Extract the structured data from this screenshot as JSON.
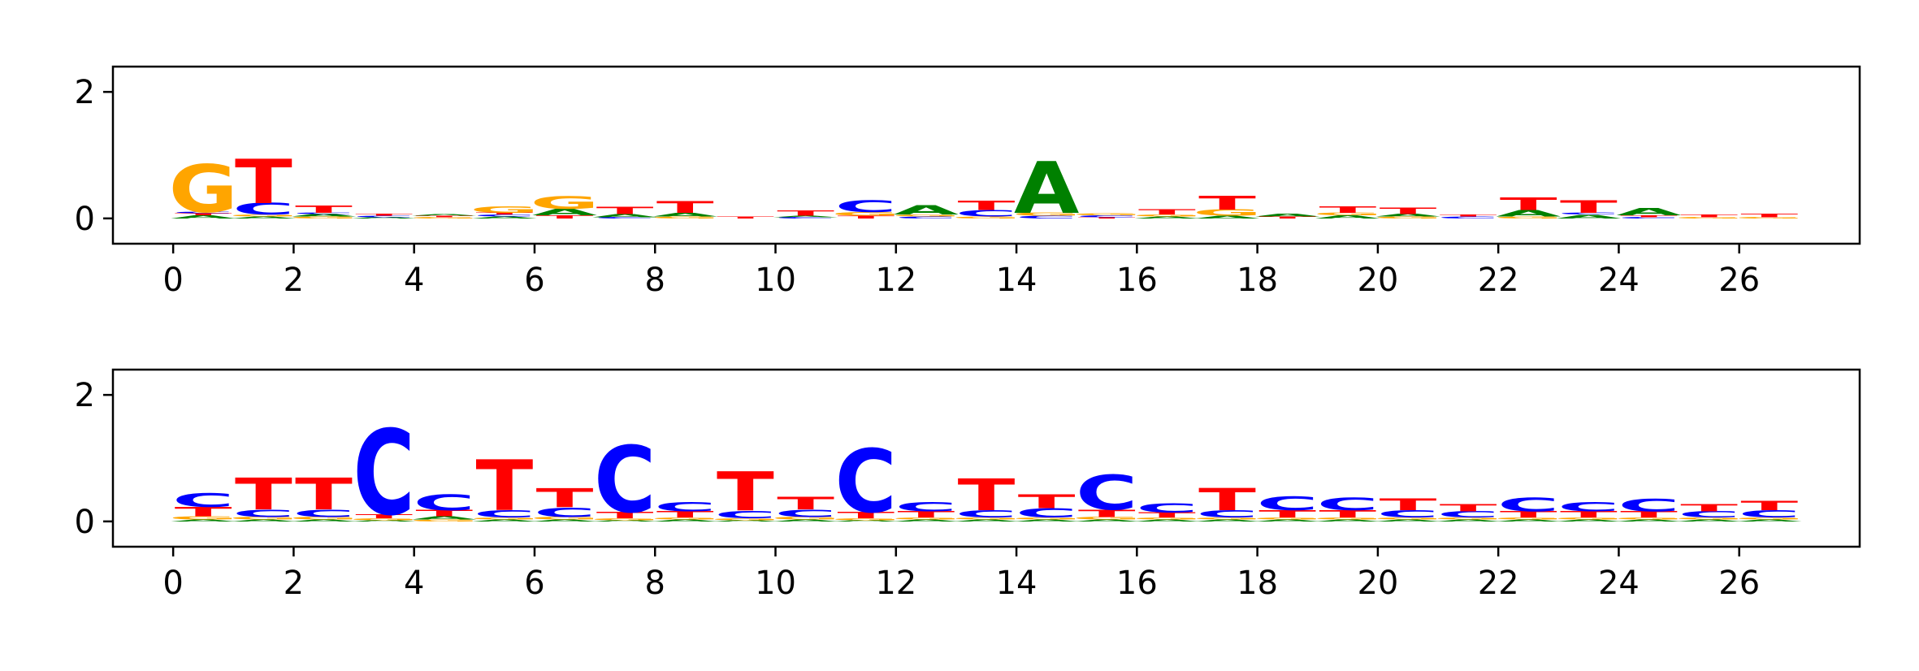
{
  "colors": {
    "A": "#008000",
    "C": "#0000ff",
    "G": "#ffa500",
    "T": "#ff0000"
  },
  "chart_data": [
    {
      "type": "sequence-logo",
      "title": "",
      "xlabel": "",
      "ylabel": "",
      "xlim": [
        -1,
        28
      ],
      "ylim": [
        -0.4,
        2.4
      ],
      "x_ticks": [
        "0",
        "2",
        "4",
        "6",
        "8",
        "10",
        "12",
        "14",
        "16",
        "18",
        "20",
        "22",
        "24",
        "26"
      ],
      "y_ticks": [
        "0",
        "2"
      ],
      "positions": [
        {
          "x": 0,
          "stack": [
            {
              "l": "A",
              "h": 0.05
            },
            {
              "l": "T",
              "h": 0.03
            },
            {
              "l": "C",
              "h": 0.02
            },
            {
              "l": "G",
              "h": 0.75
            }
          ]
        },
        {
          "x": 1,
          "stack": [
            {
              "l": "A",
              "h": 0.03
            },
            {
              "l": "G",
              "h": 0.03
            },
            {
              "l": "C",
              "h": 0.18
            },
            {
              "l": "T",
              "h": 0.7
            }
          ]
        },
        {
          "x": 2,
          "stack": [
            {
              "l": "G",
              "h": 0.03
            },
            {
              "l": "A",
              "h": 0.04
            },
            {
              "l": "C",
              "h": 0.02
            },
            {
              "l": "T",
              "h": 0.12
            }
          ]
        },
        {
          "x": 3,
          "stack": [
            {
              "l": "A",
              "h": 0.02
            },
            {
              "l": "C",
              "h": 0.02
            },
            {
              "l": "T",
              "h": 0.03
            }
          ]
        },
        {
          "x": 4,
          "stack": [
            {
              "l": "G",
              "h": 0.02
            },
            {
              "l": "T",
              "h": 0.02
            },
            {
              "l": "A",
              "h": 0.02
            }
          ]
        },
        {
          "x": 5,
          "stack": [
            {
              "l": "A",
              "h": 0.03
            },
            {
              "l": "C",
              "h": 0.03
            },
            {
              "l": "T",
              "h": 0.03
            },
            {
              "l": "G",
              "h": 0.1
            }
          ]
        },
        {
          "x": 6,
          "stack": [
            {
              "l": "T",
              "h": 0.05
            },
            {
              "l": "A",
              "h": 0.1
            },
            {
              "l": "G",
              "h": 0.2
            }
          ]
        },
        {
          "x": 7,
          "stack": [
            {
              "l": "C",
              "h": 0.02
            },
            {
              "l": "A",
              "h": 0.05
            },
            {
              "l": "T",
              "h": 0.12
            }
          ]
        },
        {
          "x": 8,
          "stack": [
            {
              "l": "G",
              "h": 0.03
            },
            {
              "l": "A",
              "h": 0.06
            },
            {
              "l": "T",
              "h": 0.18
            }
          ]
        },
        {
          "x": 9,
          "stack": [
            {
              "l": "T",
              "h": 0.03
            }
          ]
        },
        {
          "x": 10,
          "stack": [
            {
              "l": "C",
              "h": 0.02
            },
            {
              "l": "A",
              "h": 0.02
            },
            {
              "l": "T",
              "h": 0.08
            }
          ]
        },
        {
          "x": 11,
          "stack": [
            {
              "l": "T",
              "h": 0.04
            },
            {
              "l": "G",
              "h": 0.06
            },
            {
              "l": "C",
              "h": 0.18
            }
          ]
        },
        {
          "x": 12,
          "stack": [
            {
              "l": "C",
              "h": 0.03
            },
            {
              "l": "G",
              "h": 0.03
            },
            {
              "l": "A",
              "h": 0.15
            }
          ]
        },
        {
          "x": 13,
          "stack": [
            {
              "l": "G",
              "h": 0.03
            },
            {
              "l": "C",
              "h": 0.1
            },
            {
              "l": "T",
              "h": 0.15
            }
          ]
        },
        {
          "x": 14,
          "stack": [
            {
              "l": "C",
              "h": 0.04
            },
            {
              "l": "G",
              "h": 0.05
            },
            {
              "l": "A",
              "h": 0.82
            }
          ]
        },
        {
          "x": 15,
          "stack": [
            {
              "l": "T",
              "h": 0.02
            },
            {
              "l": "C",
              "h": 0.03
            },
            {
              "l": "G",
              "h": 0.03
            }
          ]
        },
        {
          "x": 16,
          "stack": [
            {
              "l": "A",
              "h": 0.03
            },
            {
              "l": "G",
              "h": 0.03
            },
            {
              "l": "T",
              "h": 0.08
            }
          ]
        },
        {
          "x": 17,
          "stack": [
            {
              "l": "A",
              "h": 0.04
            },
            {
              "l": "G",
              "h": 0.1
            },
            {
              "l": "T",
              "h": 0.22
            }
          ]
        },
        {
          "x": 18,
          "stack": [
            {
              "l": "T",
              "h": 0.03
            },
            {
              "l": "A",
              "h": 0.04
            }
          ]
        },
        {
          "x": 19,
          "stack": [
            {
              "l": "A",
              "h": 0.05
            },
            {
              "l": "G",
              "h": 0.04
            },
            {
              "l": "T",
              "h": 0.1
            }
          ]
        },
        {
          "x": 20,
          "stack": [
            {
              "l": "G",
              "h": 0.03
            },
            {
              "l": "A",
              "h": 0.04
            },
            {
              "l": "T",
              "h": 0.1
            }
          ]
        },
        {
          "x": 21,
          "stack": [
            {
              "l": "C",
              "h": 0.03
            },
            {
              "l": "T",
              "h": 0.03
            }
          ]
        },
        {
          "x": 22,
          "stack": [
            {
              "l": "G",
              "h": 0.03
            },
            {
              "l": "A",
              "h": 0.1
            },
            {
              "l": "T",
              "h": 0.2
            }
          ]
        },
        {
          "x": 23,
          "stack": [
            {
              "l": "A",
              "h": 0.06
            },
            {
              "l": "C",
              "h": 0.03
            },
            {
              "l": "T",
              "h": 0.2
            }
          ]
        },
        {
          "x": 24,
          "stack": [
            {
              "l": "C",
              "h": 0.02
            },
            {
              "l": "T",
              "h": 0.03
            },
            {
              "l": "A",
              "h": 0.12
            }
          ]
        },
        {
          "x": 25,
          "stack": [
            {
              "l": "G",
              "h": 0.02
            },
            {
              "l": "T",
              "h": 0.04
            }
          ]
        },
        {
          "x": 26,
          "stack": [
            {
              "l": "G",
              "h": 0.02
            },
            {
              "l": "T",
              "h": 0.06
            }
          ]
        }
      ]
    },
    {
      "type": "sequence-logo",
      "title": "",
      "xlabel": "",
      "ylabel": "",
      "xlim": [
        -1,
        28
      ],
      "ylim": [
        -0.4,
        2.4
      ],
      "x_ticks": [
        "0",
        "2",
        "4",
        "6",
        "8",
        "10",
        "12",
        "14",
        "16",
        "18",
        "20",
        "22",
        "24",
        "26"
      ],
      "y_ticks": [
        "0",
        "2"
      ],
      "positions": [
        {
          "x": 0,
          "stack": [
            {
              "l": "A",
              "h": 0.03
            },
            {
              "l": "G",
              "h": 0.05
            },
            {
              "l": "T",
              "h": 0.15
            },
            {
              "l": "C",
              "h": 0.22
            }
          ]
        },
        {
          "x": 1,
          "stack": [
            {
              "l": "A",
              "h": 0.03
            },
            {
              "l": "G",
              "h": 0.04
            },
            {
              "l": "C",
              "h": 0.12
            },
            {
              "l": "T",
              "h": 0.5
            }
          ]
        },
        {
          "x": 2,
          "stack": [
            {
              "l": "A",
              "h": 0.03
            },
            {
              "l": "G",
              "h": 0.04
            },
            {
              "l": "C",
              "h": 0.12
            },
            {
              "l": "T",
              "h": 0.5
            }
          ]
        },
        {
          "x": 3,
          "stack": [
            {
              "l": "A",
              "h": 0.02
            },
            {
              "l": "G",
              "h": 0.03
            },
            {
              "l": "T",
              "h": 0.07
            },
            {
              "l": "C",
              "h": 1.35
            }
          ]
        },
        {
          "x": 4,
          "stack": [
            {
              "l": "G",
              "h": 0.03
            },
            {
              "l": "A",
              "h": 0.05
            },
            {
              "l": "T",
              "h": 0.1
            },
            {
              "l": "C",
              "h": 0.25
            }
          ]
        },
        {
          "x": 5,
          "stack": [
            {
              "l": "A",
              "h": 0.03
            },
            {
              "l": "G",
              "h": 0.03
            },
            {
              "l": "C",
              "h": 0.12
            },
            {
              "l": "T",
              "h": 0.8
            }
          ]
        },
        {
          "x": 6,
          "stack": [
            {
              "l": "A",
              "h": 0.03
            },
            {
              "l": "G",
              "h": 0.04
            },
            {
              "l": "C",
              "h": 0.15
            },
            {
              "l": "T",
              "h": 0.3
            }
          ]
        },
        {
          "x": 7,
          "stack": [
            {
              "l": "A",
              "h": 0.02
            },
            {
              "l": "G",
              "h": 0.03
            },
            {
              "l": "T",
              "h": 0.1
            },
            {
              "l": "C",
              "h": 1.05
            }
          ]
        },
        {
          "x": 8,
          "stack": [
            {
              "l": "A",
              "h": 0.03
            },
            {
              "l": "G",
              "h": 0.03
            },
            {
              "l": "T",
              "h": 0.1
            },
            {
              "l": "C",
              "h": 0.15
            }
          ]
        },
        {
          "x": 9,
          "stack": [
            {
              "l": "A",
              "h": 0.02
            },
            {
              "l": "G",
              "h": 0.03
            },
            {
              "l": "C",
              "h": 0.12
            },
            {
              "l": "T",
              "h": 0.62
            }
          ]
        },
        {
          "x": 10,
          "stack": [
            {
              "l": "A",
              "h": 0.03
            },
            {
              "l": "G",
              "h": 0.04
            },
            {
              "l": "C",
              "h": 0.12
            },
            {
              "l": "T",
              "h": 0.2
            }
          ]
        },
        {
          "x": 11,
          "stack": [
            {
              "l": "A",
              "h": 0.02
            },
            {
              "l": "G",
              "h": 0.03
            },
            {
              "l": "T",
              "h": 0.1
            },
            {
              "l": "C",
              "h": 1.0
            }
          ]
        },
        {
          "x": 12,
          "stack": [
            {
              "l": "A",
              "h": 0.03
            },
            {
              "l": "G",
              "h": 0.03
            },
            {
              "l": "T",
              "h": 0.1
            },
            {
              "l": "C",
              "h": 0.15
            }
          ]
        },
        {
          "x": 13,
          "stack": [
            {
              "l": "A",
              "h": 0.03
            },
            {
              "l": "G",
              "h": 0.03
            },
            {
              "l": "C",
              "h": 0.12
            },
            {
              "l": "T",
              "h": 0.5
            }
          ]
        },
        {
          "x": 14,
          "stack": [
            {
              "l": "A",
              "h": 0.03
            },
            {
              "l": "G",
              "h": 0.03
            },
            {
              "l": "C",
              "h": 0.15
            },
            {
              "l": "T",
              "h": 0.22
            }
          ]
        },
        {
          "x": 15,
          "stack": [
            {
              "l": "A",
              "h": 0.03
            },
            {
              "l": "G",
              "h": 0.04
            },
            {
              "l": "T",
              "h": 0.12
            },
            {
              "l": "C",
              "h": 0.55
            }
          ]
        },
        {
          "x": 16,
          "stack": [
            {
              "l": "A",
              "h": 0.03
            },
            {
              "l": "G",
              "h": 0.03
            },
            {
              "l": "T",
              "h": 0.08
            },
            {
              "l": "C",
              "h": 0.15
            }
          ]
        },
        {
          "x": 17,
          "stack": [
            {
              "l": "A",
              "h": 0.03
            },
            {
              "l": "G",
              "h": 0.03
            },
            {
              "l": "C",
              "h": 0.12
            },
            {
              "l": "T",
              "h": 0.35
            }
          ]
        },
        {
          "x": 18,
          "stack": [
            {
              "l": "A",
              "h": 0.03
            },
            {
              "l": "G",
              "h": 0.03
            },
            {
              "l": "T",
              "h": 0.12
            },
            {
              "l": "C",
              "h": 0.22
            }
          ]
        },
        {
          "x": 19,
          "stack": [
            {
              "l": "A",
              "h": 0.03
            },
            {
              "l": "G",
              "h": 0.03
            },
            {
              "l": "T",
              "h": 0.12
            },
            {
              "l": "C",
              "h": 0.2
            }
          ]
        },
        {
          "x": 20,
          "stack": [
            {
              "l": "A",
              "h": 0.03
            },
            {
              "l": "G",
              "h": 0.03
            },
            {
              "l": "C",
              "h": 0.12
            },
            {
              "l": "T",
              "h": 0.18
            }
          ]
        },
        {
          "x": 21,
          "stack": [
            {
              "l": "A",
              "h": 0.03
            },
            {
              "l": "G",
              "h": 0.03
            },
            {
              "l": "C",
              "h": 0.1
            },
            {
              "l": "T",
              "h": 0.12
            }
          ]
        },
        {
          "x": 22,
          "stack": [
            {
              "l": "A",
              "h": 0.03
            },
            {
              "l": "G",
              "h": 0.03
            },
            {
              "l": "T",
              "h": 0.1
            },
            {
              "l": "C",
              "h": 0.22
            }
          ]
        },
        {
          "x": 23,
          "stack": [
            {
              "l": "A",
              "h": 0.03
            },
            {
              "l": "G",
              "h": 0.03
            },
            {
              "l": "T",
              "h": 0.1
            },
            {
              "l": "C",
              "h": 0.15
            }
          ]
        },
        {
          "x": 24,
          "stack": [
            {
              "l": "A",
              "h": 0.03
            },
            {
              "l": "G",
              "h": 0.03
            },
            {
              "l": "T",
              "h": 0.1
            },
            {
              "l": "C",
              "h": 0.2
            }
          ]
        },
        {
          "x": 25,
          "stack": [
            {
              "l": "A",
              "h": 0.03
            },
            {
              "l": "G",
              "h": 0.03
            },
            {
              "l": "C",
              "h": 0.1
            },
            {
              "l": "T",
              "h": 0.12
            }
          ]
        },
        {
          "x": 26,
          "stack": [
            {
              "l": "A",
              "h": 0.03
            },
            {
              "l": "G",
              "h": 0.03
            },
            {
              "l": "C",
              "h": 0.12
            },
            {
              "l": "T",
              "h": 0.15
            }
          ]
        }
      ]
    }
  ]
}
